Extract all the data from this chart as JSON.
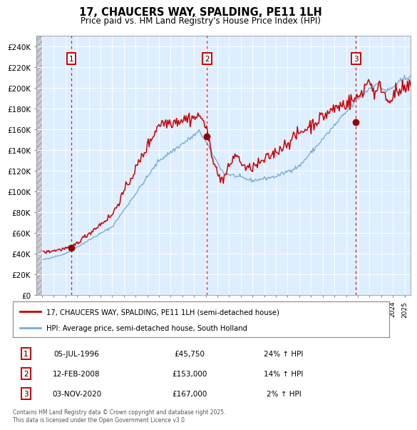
{
  "title": "17, CHAUCERS WAY, SPALDING, PE11 1LH",
  "subtitle": "Price paid vs. HM Land Registry's House Price Index (HPI)",
  "legend_line1": "17, CHAUCERS WAY, SPALDING, PE11 1LH (semi-detached house)",
  "legend_line2": "HPI: Average price, semi-detached house, South Holland",
  "purchases": [
    {
      "num": 1,
      "date": "05-JUL-1996",
      "price": 45750,
      "year": 1996.51,
      "pct": "24%",
      "dir": "↑"
    },
    {
      "num": 2,
      "date": "12-FEB-2008",
      "price": 153000,
      "year": 2008.11,
      "pct": "14%",
      "dir": "↑"
    },
    {
      "num": 3,
      "date": "03-NOV-2020",
      "price": 167000,
      "year": 2020.84,
      "pct": "2%",
      "dir": "↑"
    }
  ],
  "footer_line1": "Contains HM Land Registry data © Crown copyright and database right 2025.",
  "footer_line2": "This data is licensed under the Open Government Licence v3.0.",
  "hpi_color": "#7aadd4",
  "price_color": "#cc0000",
  "vline_color": "#cc0000",
  "marker_color": "#990000",
  "box_color": "#cc0000",
  "background_plot": "#ddeeff",
  "background_hatch": "#c8ccd8",
  "ylim": [
    0,
    250000
  ],
  "yticks": [
    0,
    20000,
    40000,
    60000,
    80000,
    100000,
    120000,
    140000,
    160000,
    180000,
    200000,
    220000,
    240000
  ],
  "xlim_start": 1993.5,
  "xlim_end": 2025.5
}
